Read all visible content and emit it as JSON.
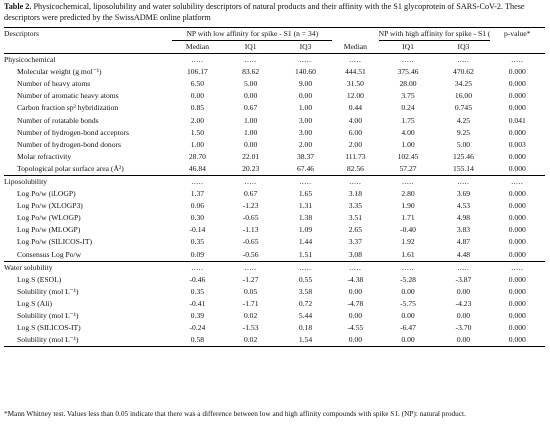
{
  "caption": {
    "label": "Table 2.",
    "text": " Physicochemical, liposolubility and water solubility descriptors of natural products and their affinity with the S1 glycoprotein of SARS-CoV-2. These descriptors were predicted by the SwissADME online platform"
  },
  "header": {
    "descriptors": "Descriptors",
    "low_group": "NP with low affinity for spike - S1 (n = 34)",
    "high_group": "NP with high affinity for spike - S1 (n = 34)",
    "median": "Median",
    "iq1": "IQ1",
    "iq3": "IQ3",
    "pvalue": "p-value*"
  },
  "dots": ".....",
  "sections": [
    {
      "title": "Physicochemical",
      "rows": [
        {
          "label": "Molecular weight (g mol⁻¹)",
          "v": [
            "106.17",
            "83.62",
            "140.60",
            "444.51",
            "375.46",
            "470.62",
            "0.000"
          ]
        },
        {
          "label": "Number of heavy atoms",
          "v": [
            "6.50",
            "5.00",
            "9.00",
            "31.50",
            "28.00",
            "34.25",
            "0.000"
          ]
        },
        {
          "label": "Number of aromatic heavy atoms",
          "v": [
            "0.00",
            "0.00",
            "0.00",
            "12.00",
            "3.75",
            "16.00",
            "0.000"
          ]
        },
        {
          "label": "Carbon fraction sp³ hybridization",
          "v": [
            "0.85",
            "0.67",
            "1.00",
            "0.44",
            "0.24",
            "0.745",
            "0.000"
          ]
        },
        {
          "label": "Number of rotatable bonds",
          "v": [
            "2.00",
            "1.00",
            "3.00",
            "4.00",
            "1.75",
            "4.25",
            "0.041"
          ]
        },
        {
          "label": "Number of hydrogen-bond acceptors",
          "v": [
            "1.50",
            "1.00",
            "3.00",
            "6.00",
            "4.00",
            "9.25",
            "0.000"
          ]
        },
        {
          "label": "Number of hydrogen-bond donors",
          "v": [
            "1.00",
            "0.00",
            "2.00",
            "2.00",
            "1.00",
            "5.00",
            "0.003"
          ]
        },
        {
          "label": "Molar refractivity",
          "v": [
            "28.70",
            "22.01",
            "38.37",
            "111.73",
            "102.45",
            "125.46",
            "0.000"
          ]
        },
        {
          "label": "Topological polar surface area (Å²)",
          "v": [
            "46.84",
            "20.23",
            "67.46",
            "82.56",
            "57.27",
            "155.14",
            "0.000"
          ]
        }
      ]
    },
    {
      "title": "Liposolubility",
      "rows": [
        {
          "label": "Log Po/w (iLOGP)",
          "v": [
            "1.37",
            "0.67",
            "1.65",
            "3.18",
            "2.80",
            "3.69",
            "0.000"
          ]
        },
        {
          "label": "Log Po/w (XLOGP3)",
          "v": [
            "0.06",
            "-1.23",
            "1.31",
            "3.35",
            "1.90",
            "4.53",
            "0.000"
          ]
        },
        {
          "label": "Log Po/w (WLOGP)",
          "v": [
            "0.30",
            "-0.65",
            "1.38",
            "3.51",
            "1.71",
            "4.98",
            "0.000"
          ]
        },
        {
          "label": "Log Po/w (MLOGP)",
          "v": [
            "-0.14",
            "-1.13",
            "1.09",
            "2.65",
            "-0.40",
            "3.83",
            "0.000"
          ]
        },
        {
          "label": "Log Po/w (SILICOS-IT)",
          "v": [
            "0.35",
            "-0.65",
            "1.44",
            "3.37",
            "1.92",
            "4.87",
            "0.000"
          ]
        },
        {
          "label": "Consensus Log Po/w",
          "v": [
            "0.09",
            "-0.56",
            "1.51",
            "3.08",
            "1.61",
            "4.48",
            "0.000"
          ]
        }
      ]
    },
    {
      "title": "Water solubility",
      "rows": [
        {
          "label": "Log S (ESOL)",
          "v": [
            "-0.46",
            "-1.27",
            "0.55",
            "-4.38",
            "-5.28",
            "-3.87",
            "0.000"
          ]
        },
        {
          "label": "Solubility (mol L⁻¹)",
          "v": [
            "0.35",
            "0.05",
            "3.58",
            "0.00",
            "0.00",
            "0.00",
            "0.000"
          ]
        },
        {
          "label": "Log S (Ali)",
          "v": [
            "-0.41",
            "-1.71",
            "0.72",
            "-4.78",
            "-5.75",
            "-4.23",
            "0.000"
          ]
        },
        {
          "label": "Solubility (mol L⁻¹)",
          "v": [
            "0.39",
            "0.02",
            "5.44",
            "0.00",
            "0.00",
            "0.00",
            "0.000"
          ]
        },
        {
          "label": "Log S (SILICOS-IT)",
          "v": [
            "-0.24",
            "-1.53",
            "0.18",
            "-4.55",
            "-6.47",
            "-3.70",
            "0.000"
          ]
        },
        {
          "label": "Solubility (mol L⁻¹)",
          "v": [
            "0.58",
            "0.02",
            "1.54",
            "0.00",
            "0.00",
            "0.00",
            "0.000"
          ]
        }
      ]
    }
  ],
  "footnote": "*Mann Whitney test. Values less than 0.05 indicate that there was a difference between low and high affinity compounds with spike S1. (NP): natural product."
}
